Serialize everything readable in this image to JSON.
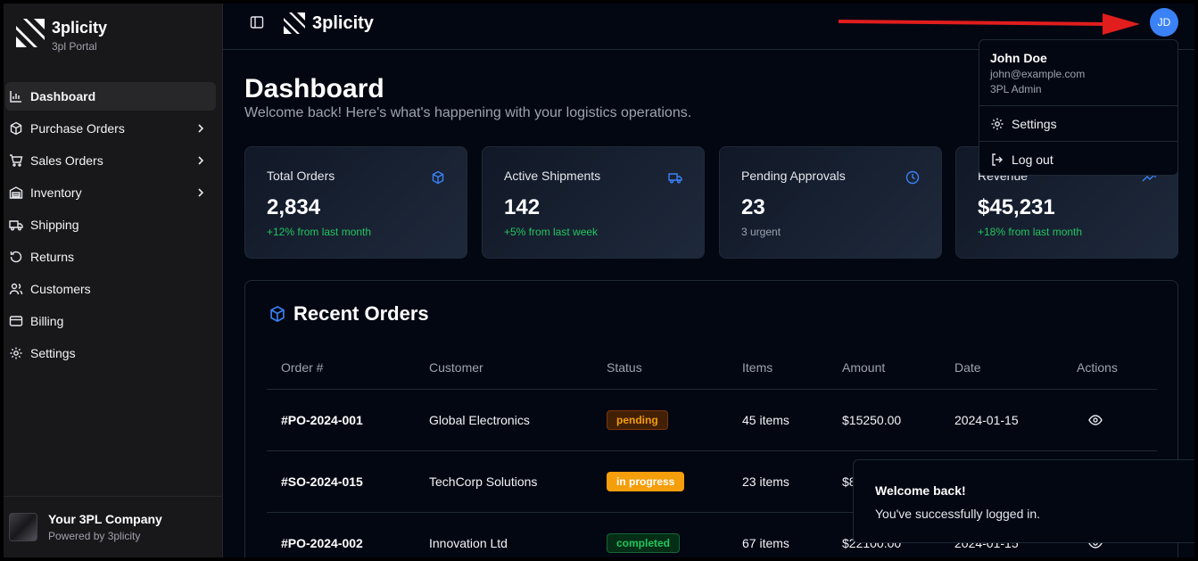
{
  "sidebar": {
    "brand_name": "3plicity",
    "brand_sub": "3pl Portal",
    "items": [
      {
        "label": "Dashboard",
        "icon": "bar-chart-icon",
        "active": true
      },
      {
        "label": "Purchase Orders",
        "icon": "package-icon",
        "chevron": true
      },
      {
        "label": "Sales Orders",
        "icon": "cart-icon",
        "chevron": true
      },
      {
        "label": "Inventory",
        "icon": "warehouse-icon",
        "chevron": true
      },
      {
        "label": "Shipping",
        "icon": "truck-icon"
      },
      {
        "label": "Returns",
        "icon": "rotate-icon"
      },
      {
        "label": "Customers",
        "icon": "users-icon"
      },
      {
        "label": "Billing",
        "icon": "credit-card-icon"
      },
      {
        "label": "Settings",
        "icon": "gear-icon"
      }
    ],
    "footer": {
      "company": "Your 3PL Company",
      "powered_by": "Powered by 3plicity"
    }
  },
  "header": {
    "brand_name": "3plicity",
    "avatar_initials": "JD"
  },
  "page": {
    "title": "Dashboard",
    "subtitle": "Welcome back! Here's what's happening with your logistics operations."
  },
  "stats": [
    {
      "label": "Total Orders",
      "value": "2,834",
      "note": "+12% from last month",
      "icon": "package-icon"
    },
    {
      "label": "Active Shipments",
      "value": "142",
      "note": "+5% from last week",
      "icon": "truck-icon"
    },
    {
      "label": "Pending Approvals",
      "value": "23",
      "note": "3 urgent",
      "icon": "clock-icon"
    },
    {
      "label": "Revenue",
      "value": "$45,231",
      "note": "+18% from last month",
      "icon": "trending-up-icon"
    }
  ],
  "orders": {
    "title": "Recent Orders",
    "columns": [
      "Order #",
      "Customer",
      "Status",
      "Items",
      "Amount",
      "Date",
      "Actions"
    ],
    "rows": [
      {
        "id": "#PO-2024-001",
        "customer": "Global Electronics",
        "status": "pending",
        "items": "45 items",
        "amount": "$15250.00",
        "date": "2024-01-15"
      },
      {
        "id": "#SO-2024-015",
        "customer": "TechCorp Solutions",
        "status": "in progress",
        "items": "23 items",
        "amount": "$8",
        "date": ""
      },
      {
        "id": "#PO-2024-002",
        "customer": "Innovation Ltd",
        "status": "completed",
        "items": "67 items",
        "amount": "$22100.00",
        "date": "2024-01-15"
      }
    ]
  },
  "colors": {
    "accent": "#3b82f6",
    "pending_bg": "#422006",
    "pending_fg": "#f59e0b",
    "progress_bg": "#f59e0b",
    "progress_fg": "#ffffff",
    "completed_bg": "#052e16",
    "completed_fg": "#22c55e",
    "annotation_arrow": "#e11d1d"
  },
  "user_menu": {
    "name": "John Doe",
    "email": "john@example.com",
    "role": "3PL Admin",
    "settings_label": "Settings",
    "logout_label": "Log out"
  },
  "toast": {
    "title": "Welcome back!",
    "message": "You've successfully logged in."
  }
}
